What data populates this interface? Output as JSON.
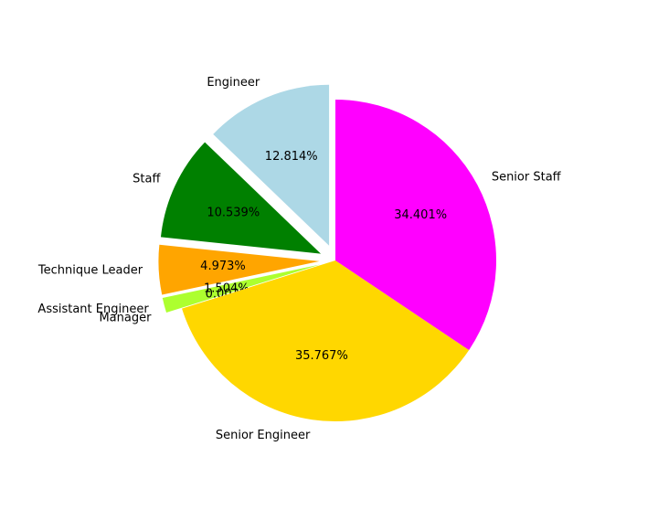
{
  "chart_data": {
    "type": "pie",
    "title": "",
    "slices": [
      {
        "label": "Engineer",
        "value": 12.814,
        "pct_label": "12.814%",
        "color": "#add8e6",
        "exploded": true
      },
      {
        "label": "Staff",
        "value": 10.539,
        "pct_label": "10.539%",
        "color": "#008000",
        "exploded": true
      },
      {
        "label": "Technique Leader",
        "value": 4.973,
        "pct_label": "4.973%",
        "color": "#ffa500",
        "exploded": true
      },
      {
        "label": "Assistant Engineer",
        "value": 1.504,
        "pct_label": "1.504%",
        "color": "#adff2f",
        "exploded": true
      },
      {
        "label": "Manager",
        "value": 0.003,
        "pct_label": "0.003%",
        "color": "#adff2f",
        "exploded": true
      },
      {
        "label": "Senior Engineer",
        "value": 35.767,
        "pct_label": "35.767%",
        "color": "#ffd700",
        "exploded": false
      },
      {
        "label": "Senior Staff",
        "value": 34.401,
        "pct_label": "34.401%",
        "color": "#ff00ff",
        "exploded": false
      }
    ]
  }
}
